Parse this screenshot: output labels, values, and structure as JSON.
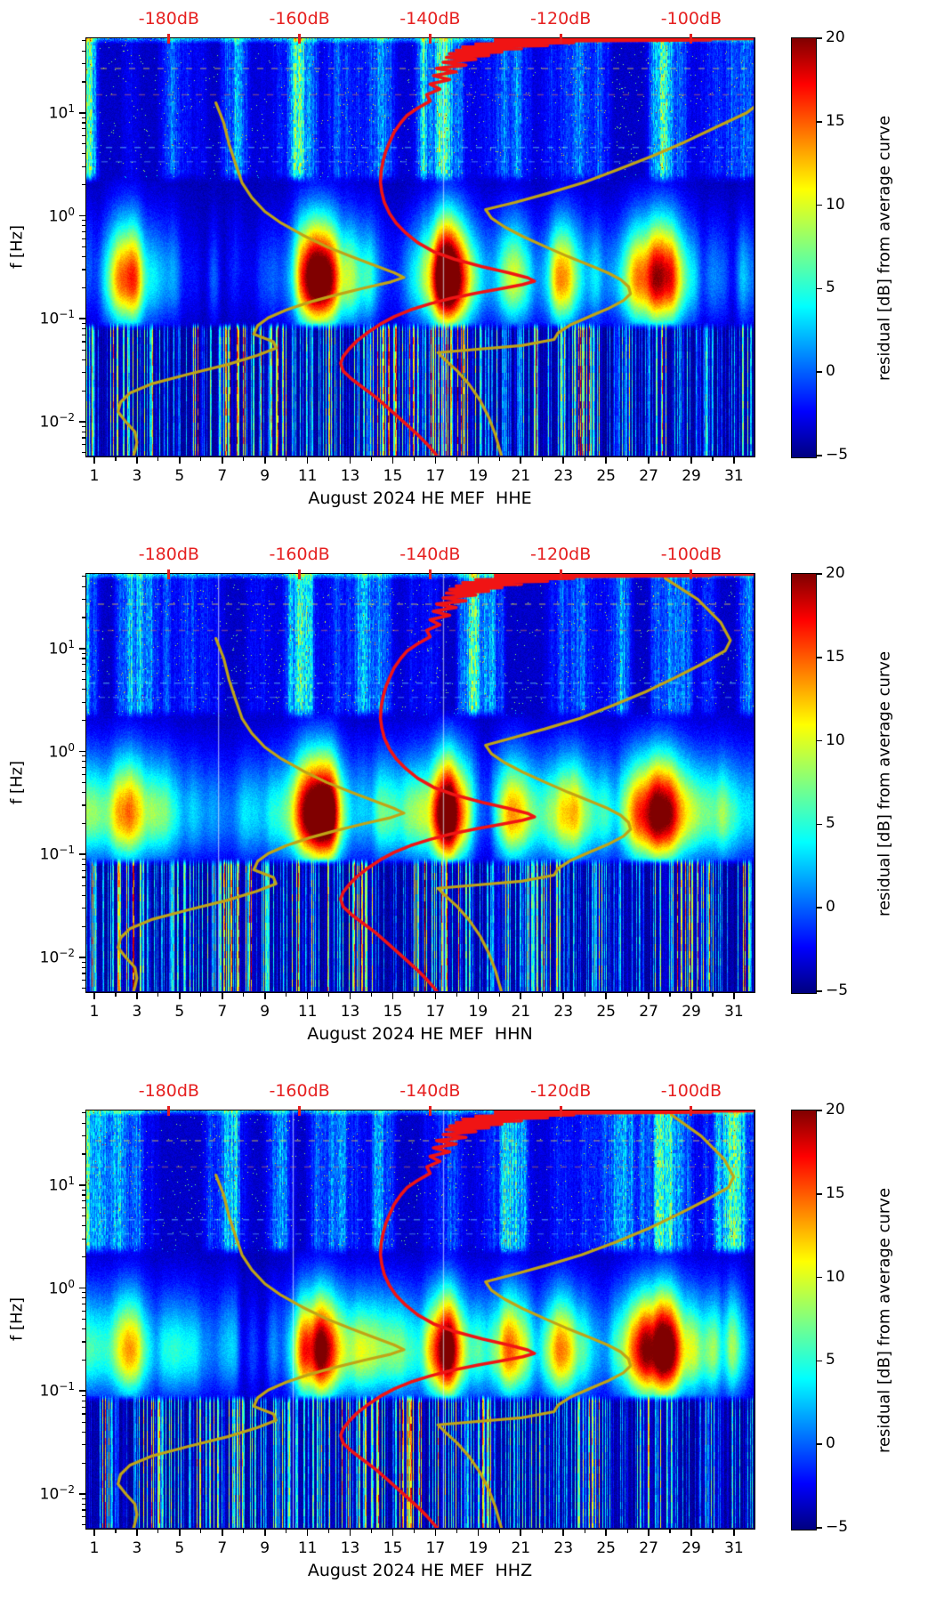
{
  "colors": {
    "background": "#ffffff",
    "axis_text": "#000000",
    "top_axis_text": "#e62020",
    "curve_red": "#f01414",
    "curve_olive": "#c0a416",
    "heat_base": "#000080"
  },
  "chart_data": {
    "type": "heatmap",
    "subtype": "spectrogram-residual",
    "panels": [
      {
        "channel": "HHE",
        "xlabel": "August 2024 HE MEF  HHE",
        "seed": 11,
        "gap_days": [
          17.35
        ]
      },
      {
        "channel": "HHN",
        "xlabel": "August 2024 HE MEF  HHN",
        "seed": 47,
        "gap_days": [
          6.8,
          17.35
        ]
      },
      {
        "channel": "HHZ",
        "xlabel": "August 2024 HE MEF  HHZ",
        "seed": 83,
        "gap_days": [
          10.3,
          17.35
        ]
      }
    ],
    "x_axis": {
      "unit": "day of month",
      "range": [
        0.625,
        31.92
      ],
      "tick_values": [
        1,
        3,
        5,
        7,
        9,
        11,
        13,
        15,
        17,
        19,
        21,
        23,
        25,
        27,
        29,
        31
      ],
      "tick_labels": [
        "1",
        "3",
        "5",
        "7",
        "9",
        "11",
        "13",
        "15",
        "17",
        "19",
        "21",
        "23",
        "25",
        "27",
        "29",
        "31"
      ],
      "minor_tick_values": [
        2,
        4,
        6,
        8,
        10,
        12,
        14,
        16,
        18,
        20,
        22,
        24,
        26,
        28,
        30
      ]
    },
    "y_axis": {
      "label": "f [Hz]",
      "scale": "log",
      "range_hz": [
        0.0047,
        53
      ],
      "ticks": [
        {
          "value": 10,
          "base": "10",
          "exp": "1"
        },
        {
          "value": 1,
          "base": "10",
          "exp": "0"
        },
        {
          "value": 0.1,
          "base": "10",
          "exp": "−1"
        },
        {
          "value": 0.01,
          "base": "10",
          "exp": "−2"
        }
      ]
    },
    "top_axis": {
      "unit": "dB",
      "range": [
        -192.65,
        -90.45
      ],
      "tick_values": [
        -180,
        -160,
        -140,
        -120,
        -100
      ],
      "tick_labels": [
        "-180dB",
        "-160dB",
        "-140dB",
        "-120dB",
        "-100dB"
      ]
    },
    "colorbar": {
      "label": "residual [dB] from average curve",
      "range": [
        -5,
        20
      ],
      "tick_values": [
        20,
        15,
        10,
        5,
        0,
        -5
      ],
      "tick_labels": [
        "20",
        "15",
        "10",
        "5",
        "0",
        "−5"
      ],
      "colormap": "jet"
    },
    "curves": {
      "average_psd": {
        "name": "average PSD curve",
        "color": "#f01414",
        "points_f_db": [
          [
            51.8,
            -130
          ],
          [
            52.6,
            -90.6
          ],
          [
            52.0,
            -124
          ],
          [
            51,
            -97
          ],
          [
            49.5,
            -130
          ],
          [
            48,
            -118
          ],
          [
            46.5,
            -133
          ],
          [
            45,
            -122
          ],
          [
            43.5,
            -135
          ],
          [
            42,
            -126
          ],
          [
            40.5,
            -136
          ],
          [
            39,
            -129
          ],
          [
            37.5,
            -137
          ],
          [
            36,
            -131
          ],
          [
            34.5,
            -137.5
          ],
          [
            33,
            -133
          ],
          [
            31,
            -138
          ],
          [
            29,
            -134.5
          ],
          [
            27,
            -139
          ],
          [
            25,
            -136
          ],
          [
            23,
            -139.5
          ],
          [
            21,
            -137
          ],
          [
            19,
            -140
          ],
          [
            17,
            -138.5
          ],
          [
            15,
            -140.5
          ],
          [
            13,
            -140
          ],
          [
            11,
            -142
          ],
          [
            9.5,
            -143.5
          ],
          [
            8,
            -144.5
          ],
          [
            6.5,
            -145.5
          ],
          [
            5.2,
            -146.2
          ],
          [
            4.2,
            -146.8
          ],
          [
            3.4,
            -147.2
          ],
          [
            2.7,
            -147.5
          ],
          [
            2.1,
            -147.6
          ],
          [
            1.7,
            -147.4
          ],
          [
            1.35,
            -147
          ],
          [
            1.05,
            -146.2
          ],
          [
            0.85,
            -145.2
          ],
          [
            0.68,
            -143.7
          ],
          [
            0.55,
            -141.9
          ],
          [
            0.45,
            -139.5
          ],
          [
            0.38,
            -136.3
          ],
          [
            0.32,
            -132
          ],
          [
            0.28,
            -128
          ],
          [
            0.25,
            -125
          ],
          [
            0.232,
            -124
          ],
          [
            0.215,
            -125.8
          ],
          [
            0.197,
            -129
          ],
          [
            0.178,
            -132.8
          ],
          [
            0.158,
            -136.8
          ],
          [
            0.14,
            -140
          ],
          [
            0.122,
            -143
          ],
          [
            0.105,
            -145.5
          ],
          [
            0.089,
            -147.6
          ],
          [
            0.074,
            -149.5
          ],
          [
            0.061,
            -151.2
          ],
          [
            0.051,
            -152.4
          ],
          [
            0.043,
            -153.3
          ],
          [
            0.037,
            -153.7
          ],
          [
            0.031,
            -153.3
          ],
          [
            0.026,
            -152
          ],
          [
            0.0215,
            -150.3
          ],
          [
            0.0175,
            -148.4
          ],
          [
            0.0143,
            -146.8
          ],
          [
            0.0116,
            -145.2
          ],
          [
            0.0094,
            -143.6
          ],
          [
            0.0076,
            -142
          ],
          [
            0.0061,
            -140.5
          ],
          [
            0.005,
            -139.3
          ],
          [
            0.0045,
            -138.8
          ]
        ]
      },
      "noise_model_low": {
        "name": "low noise model",
        "color": "#c0a416",
        "points_f_db": [
          [
            12.5,
            -172.8
          ],
          [
            8,
            -171.6
          ],
          [
            5,
            -170.8
          ],
          [
            3.2,
            -169.8
          ],
          [
            2.1,
            -168.8
          ],
          [
            1.5,
            -167.3
          ],
          [
            1.1,
            -165.3
          ],
          [
            0.85,
            -162.8
          ],
          [
            0.65,
            -159.5
          ],
          [
            0.5,
            -155.8
          ],
          [
            0.4,
            -152
          ],
          [
            0.33,
            -148.5
          ],
          [
            0.28,
            -145.5
          ],
          [
            0.252,
            -144
          ],
          [
            0.228,
            -146
          ],
          [
            0.2,
            -150
          ],
          [
            0.17,
            -154.5
          ],
          [
            0.145,
            -158.5
          ],
          [
            0.122,
            -162
          ],
          [
            0.102,
            -164.8
          ],
          [
            0.086,
            -166.4
          ],
          [
            0.071,
            -167
          ],
          [
            0.06,
            -164
          ],
          [
            0.052,
            -163.6
          ],
          [
            0.044,
            -166.5
          ],
          [
            0.036,
            -171
          ],
          [
            0.029,
            -177
          ],
          [
            0.0235,
            -182.5
          ],
          [
            0.019,
            -186
          ],
          [
            0.0155,
            -187.4
          ],
          [
            0.0125,
            -187.8
          ],
          [
            0.01,
            -186.6
          ],
          [
            0.008,
            -185.2
          ],
          [
            0.0063,
            -184.9
          ],
          [
            0.0052,
            -185.2
          ],
          [
            0.0045,
            -185.5
          ]
        ]
      },
      "noise_model_high": {
        "name": "high noise model",
        "color": "#c0a416",
        "points_top_f_db_per_panel": [
          [
            [
              14,
              -88.5
            ],
            [
              10,
              -91.5
            ],
            [
              7.2,
              -96.3
            ],
            [
              5.2,
              -101
            ],
            [
              3.8,
              -106
            ],
            [
              2.8,
              -111.3
            ],
            [
              2.1,
              -116.5
            ],
            [
              1.65,
              -122
            ],
            [
              1.35,
              -127
            ]
          ],
          [
            [
              48,
              -104
            ],
            [
              30,
              -99
            ],
            [
              18,
              -95.5
            ],
            [
              12,
              -94
            ],
            [
              9.5,
              -94.8
            ],
            [
              7,
              -98.5
            ],
            [
              5.2,
              -102.5
            ],
            [
              3.8,
              -107
            ],
            [
              2.8,
              -112
            ],
            [
              2.1,
              -117
            ],
            [
              1.65,
              -122.5
            ],
            [
              1.35,
              -127.5
            ]
          ],
          [
            [
              48,
              -103
            ],
            [
              30,
              -98.5
            ],
            [
              18,
              -95
            ],
            [
              12,
              -93.5
            ],
            [
              9.5,
              -94.3
            ],
            [
              7,
              -98
            ],
            [
              5.2,
              -102
            ],
            [
              3.8,
              -106.5
            ],
            [
              2.8,
              -111.5
            ],
            [
              2.1,
              -116.8
            ],
            [
              1.65,
              -122.3
            ],
            [
              1.35,
              -127.3
            ]
          ]
        ],
        "points_common_f_db": [
          [
            1.15,
            -131.5
          ],
          [
            0.95,
            -130.6
          ],
          [
            0.78,
            -128.6
          ],
          [
            0.63,
            -125.8
          ],
          [
            0.5,
            -122.3
          ],
          [
            0.4,
            -118.8
          ],
          [
            0.33,
            -115.5
          ],
          [
            0.28,
            -112.8
          ],
          [
            0.24,
            -110.8
          ],
          [
            0.205,
            -109.6
          ],
          [
            0.175,
            -109.3
          ],
          [
            0.15,
            -110.4
          ],
          [
            0.125,
            -112.8
          ],
          [
            0.105,
            -115.6
          ],
          [
            0.088,
            -118.4
          ],
          [
            0.073,
            -120.4
          ],
          [
            0.063,
            -121
          ],
          [
            0.055,
            -126
          ],
          [
            0.047,
            -138.8
          ],
          [
            0.04,
            -137.7
          ],
          [
            0.031,
            -135.8
          ],
          [
            0.023,
            -134
          ],
          [
            0.016,
            -132.3
          ],
          [
            0.011,
            -131
          ],
          [
            0.0075,
            -130
          ],
          [
            0.0055,
            -129.4
          ],
          [
            0.0045,
            -129
          ]
        ]
      }
    },
    "texture": {
      "quiet_days": [
        5.8,
        8.6,
        15.4,
        22.2,
        29.3
      ],
      "hotspots": [
        {
          "day": 2.6,
          "f": 0.16,
          "amp": 9
        },
        {
          "day": 10.9,
          "f": 0.25,
          "amp": 10
        },
        {
          "day": 11.8,
          "f": 0.21,
          "amp": 14
        },
        {
          "day": 17.6,
          "f": 0.2,
          "amp": 16
        },
        {
          "day": 20.6,
          "f": 0.22,
          "amp": 8
        },
        {
          "day": 23.0,
          "f": 0.19,
          "amp": 10
        },
        {
          "day": 26.6,
          "f": 0.3,
          "amp": 9
        },
        {
          "day": 27.7,
          "f": 0.21,
          "amp": 16
        }
      ],
      "dashed_lines": [
        {
          "f": 27,
          "color": "rgba(235,215,70,0.55)"
        },
        {
          "f": 15,
          "color": "rgba(255,150,60,0.40)"
        },
        {
          "f": 4.6,
          "color": "rgba(130,255,255,0.45)"
        },
        {
          "f": 3.35,
          "color": "rgba(150,255,255,0.30)"
        }
      ]
    }
  }
}
